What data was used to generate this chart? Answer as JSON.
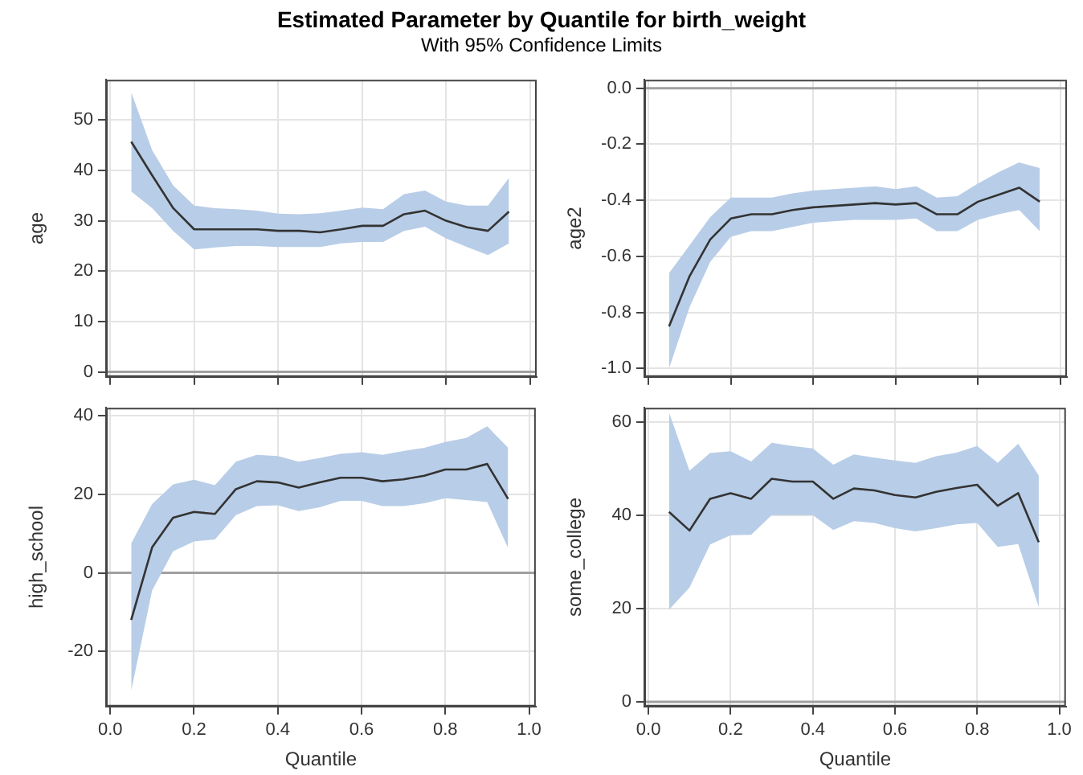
{
  "chart_data": [
    {
      "type": "line",
      "title": "Estimated Parameter by Quantile for birth_weight",
      "subtitle": "With 95% Confidence Limits",
      "ylabel": "age",
      "x": [
        0.05,
        0.1,
        0.15,
        0.2,
        0.25,
        0.3,
        0.35,
        0.4,
        0.45,
        0.5,
        0.55,
        0.6,
        0.65,
        0.7,
        0.75,
        0.8,
        0.85,
        0.9,
        0.95
      ],
      "xlim": [
        -0.01,
        1.016
      ],
      "xticks": [
        {
          "value": 0,
          "label": null
        },
        {
          "value": 0.2,
          "label": null
        },
        {
          "value": 0.4,
          "label": null
        },
        {
          "value": 0.6,
          "label": null
        },
        {
          "value": 0.8,
          "label": null
        },
        {
          "value": 1,
          "label": null
        }
      ],
      "ylim": [
        -1,
        58
      ],
      "yticks": [
        0,
        10,
        20,
        30,
        40,
        50
      ],
      "tick_labels": "y",
      "grid": true,
      "legend": false,
      "marker": "none",
      "series": [
        {
          "color": "#333333",
          "values": [
            45.7,
            39,
            32.5,
            28.3,
            28.3,
            28.3,
            28.3,
            28,
            28,
            27.7,
            28.3,
            29,
            29,
            31.3,
            32,
            30,
            28.7,
            28,
            31.8
          ],
          "lower": [
            35.8,
            32.5,
            28,
            24.3,
            24.7,
            25,
            25,
            24.8,
            24.8,
            24.8,
            25.5,
            25.8,
            25.8,
            28,
            28.8,
            26.5,
            24.8,
            23.2,
            25.5
          ],
          "upper": [
            55.5,
            44,
            37,
            33,
            32.5,
            32.3,
            32,
            31.4,
            31.3,
            31.5,
            32,
            32.6,
            32.3,
            35.3,
            36,
            33.8,
            33,
            33,
            38.5
          ]
        }
      ],
      "ref_lines": [
        {
          "axis": "y",
          "value": 0,
          "color": "#a0a0a0"
        }
      ]
    },
    {
      "type": "line",
      "ylabel": "age2",
      "x": [
        0.05,
        0.1,
        0.15,
        0.2,
        0.25,
        0.3,
        0.35,
        0.4,
        0.45,
        0.5,
        0.55,
        0.6,
        0.65,
        0.7,
        0.75,
        0.8,
        0.85,
        0.9,
        0.95
      ],
      "xlim": [
        -0.01,
        1.016
      ],
      "xticks": [
        {
          "value": 0,
          "label": null
        },
        {
          "value": 0.2,
          "label": null
        },
        {
          "value": 0.4,
          "label": null
        },
        {
          "value": 0.6,
          "label": null
        },
        {
          "value": 0.8,
          "label": null
        },
        {
          "value": 1,
          "label": null
        }
      ],
      "ylim": [
        -1.03,
        0.03
      ],
      "yticks": [
        {
          "value": -1,
          "label": "-1.0"
        },
        -0.8,
        -0.6,
        -0.4,
        -0.2,
        {
          "value": 0,
          "label": "0.0"
        }
      ],
      "tick_labels": "y",
      "grid": true,
      "legend": false,
      "marker": "none",
      "series": [
        {
          "color": "#333333",
          "values": [
            -0.85,
            -0.67,
            -0.54,
            -0.465,
            -0.45,
            -0.45,
            -0.435,
            -0.425,
            -0.42,
            -0.415,
            -0.41,
            -0.415,
            -0.41,
            -0.45,
            -0.45,
            -0.405,
            -0.38,
            -0.355,
            -0.405
          ],
          "lower": [
            -1.0,
            -0.78,
            -0.62,
            -0.53,
            -0.51,
            -0.51,
            -0.495,
            -0.48,
            -0.475,
            -0.47,
            -0.47,
            -0.47,
            -0.465,
            -0.51,
            -0.51,
            -0.47,
            -0.45,
            -0.435,
            -0.51
          ],
          "upper": [
            -0.66,
            -0.56,
            -0.46,
            -0.39,
            -0.39,
            -0.39,
            -0.375,
            -0.365,
            -0.36,
            -0.355,
            -0.35,
            -0.36,
            -0.35,
            -0.39,
            -0.385,
            -0.34,
            -0.3,
            -0.265,
            -0.285
          ]
        }
      ],
      "ref_lines": [
        {
          "axis": "y",
          "value": 0,
          "color": "#a0a0a0"
        }
      ]
    },
    {
      "type": "line",
      "xlabel": "Quantile",
      "ylabel": "high_school",
      "x": [
        0.05,
        0.1,
        0.15,
        0.2,
        0.25,
        0.3,
        0.35,
        0.4,
        0.45,
        0.5,
        0.55,
        0.6,
        0.65,
        0.7,
        0.75,
        0.8,
        0.85,
        0.9,
        0.95
      ],
      "xlim": [
        -0.01,
        1.016
      ],
      "xticks": [
        {
          "value": 0,
          "label": "0.0"
        },
        0.2,
        0.4,
        0.6,
        0.8,
        {
          "value": 1,
          "label": "1.0"
        }
      ],
      "ylim": [
        -34,
        42
      ],
      "yticks": [
        -20,
        0,
        20,
        40
      ],
      "grid": true,
      "legend": false,
      "marker": "none",
      "series": [
        {
          "color": "#333333",
          "values": [
            -12,
            6.5,
            14,
            15.5,
            15,
            21.3,
            23.3,
            23,
            21.7,
            23,
            24.2,
            24.2,
            23.3,
            23.8,
            24.7,
            26.3,
            26.3,
            27.7,
            18.8
          ],
          "lower": [
            -30,
            -4.5,
            5.5,
            8,
            8.5,
            14.7,
            17,
            17.2,
            15.7,
            16.7,
            18.3,
            18.3,
            17,
            17,
            17.7,
            19,
            18.5,
            18,
            6.3
          ],
          "upper": [
            7.5,
            17.5,
            22.5,
            23.7,
            22.3,
            28.3,
            30,
            29.7,
            28.3,
            29.2,
            30.3,
            30.7,
            30,
            31,
            31.8,
            33.3,
            34.3,
            37.3,
            31.8
          ]
        }
      ],
      "ref_lines": [
        {
          "axis": "y",
          "value": 0,
          "color": "#a0a0a0"
        }
      ]
    },
    {
      "type": "line",
      "xlabel": "Quantile",
      "ylabel": "some_college",
      "x": [
        0.05,
        0.1,
        0.15,
        0.2,
        0.25,
        0.3,
        0.35,
        0.4,
        0.45,
        0.5,
        0.55,
        0.6,
        0.65,
        0.7,
        0.75,
        0.8,
        0.85,
        0.9,
        0.95
      ],
      "xlim": [
        -0.01,
        1.016
      ],
      "xticks": [
        {
          "value": 0,
          "label": "0.0"
        },
        0.2,
        0.4,
        0.6,
        0.8,
        {
          "value": 1,
          "label": "1.0"
        }
      ],
      "ylim": [
        -1,
        63
      ],
      "yticks": [
        0,
        20,
        40,
        60
      ],
      "grid": true,
      "legend": false,
      "marker": "none",
      "series": [
        {
          "color": "#333333",
          "values": [
            40.7,
            36.7,
            43.5,
            44.7,
            43.5,
            47.8,
            47.2,
            47.2,
            43.5,
            45.7,
            45.3,
            44.3,
            43.8,
            45,
            45.8,
            46.5,
            42,
            44.7,
            34.2
          ],
          "lower": [
            19.7,
            24.5,
            33.7,
            35.7,
            35.8,
            40,
            40,
            40,
            36.8,
            38.7,
            38.3,
            37.2,
            36.5,
            37.2,
            38,
            38.3,
            33.2,
            33.8,
            20.3
          ],
          "upper": [
            62,
            49.5,
            53.3,
            53.7,
            51.5,
            55.5,
            54.8,
            54.3,
            50.8,
            53,
            52.3,
            51.7,
            51.2,
            52.6,
            53.4,
            54.8,
            51.2,
            55.3,
            48.5
          ]
        }
      ],
      "ref_lines": [
        {
          "axis": "y",
          "value": 0,
          "color": "#a0a0a0"
        }
      ]
    }
  ]
}
